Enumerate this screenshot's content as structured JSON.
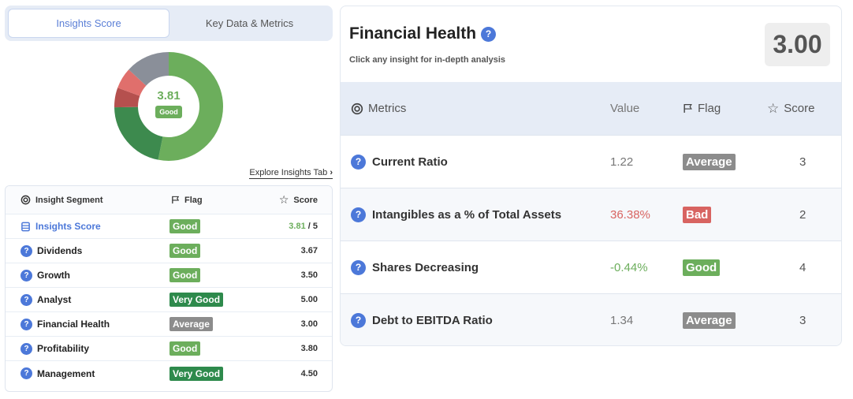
{
  "tabs": [
    {
      "label": "Insights Score",
      "active": true
    },
    {
      "label": "Key Data & Metrics",
      "active": false
    }
  ],
  "donut": {
    "score": "3.81",
    "badge": "Good",
    "segments": [
      {
        "value": 3.81,
        "color": "#6cae5c"
      },
      {
        "value": 1.55,
        "color": "#3d8a4e"
      },
      {
        "value": 0.42,
        "color": "#b5504e"
      },
      {
        "value": 0.45,
        "color": "#e06f6c"
      },
      {
        "value": 0.95,
        "color": "#8a8f99"
      }
    ]
  },
  "explore_link": "Explore Insights Tab",
  "segment_table": {
    "headers": {
      "segment": "Insight Segment",
      "flag": "Flag",
      "score": "Score"
    },
    "insights_row": {
      "label": "Insights Score",
      "flag": "Good",
      "score": "3.81",
      "out_of": "/ 5"
    },
    "rows": [
      {
        "label": "Dividends",
        "flag": "Good",
        "flag_class": "b-good",
        "score": "3.67"
      },
      {
        "label": "Growth",
        "flag": "Good",
        "flag_class": "b-good",
        "score": "3.50"
      },
      {
        "label": "Analyst",
        "flag": "Very Good",
        "flag_class": "b-vgood",
        "score": "5.00"
      },
      {
        "label": "Financial Health",
        "flag": "Average",
        "flag_class": "b-avg",
        "score": "3.00"
      },
      {
        "label": "Profitability",
        "flag": "Good",
        "flag_class": "b-good",
        "score": "3.80"
      },
      {
        "label": "Management",
        "flag": "Very Good",
        "flag_class": "b-vgood",
        "score": "4.50"
      }
    ]
  },
  "financial_health": {
    "title": "Financial Health",
    "subtitle": "Click any insight for in-depth analysis",
    "score": "3.00",
    "headers": {
      "metrics": "Metrics",
      "value": "Value",
      "flag": "Flag",
      "score": "Score"
    },
    "rows": [
      {
        "label": "Current Ratio",
        "value": "1.22",
        "value_class": "",
        "flag": "Average",
        "flag_class": "b-avg",
        "score": "3"
      },
      {
        "label": "Intangibles as a % of Total Assets",
        "value": "36.38%",
        "value_class": "red-val",
        "flag": "Bad",
        "flag_class": "b-bad",
        "score": "2"
      },
      {
        "label": "Shares Decreasing",
        "value": "-0.44%",
        "value_class": "green-val",
        "flag": "Good",
        "flag_class": "b-good",
        "score": "4"
      },
      {
        "label": "Debt to EBITDA Ratio",
        "value": "1.34",
        "value_class": "",
        "flag": "Average",
        "flag_class": "b-avg",
        "score": "3"
      }
    ]
  }
}
